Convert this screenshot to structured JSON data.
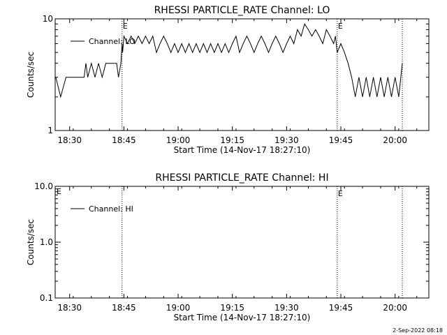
{
  "footer": {
    "timestamp": "2-Sep-2022 08:18"
  },
  "chart_data": [
    {
      "type": "line",
      "title": "RHESSI PARTICLE_RATE Channel: LO",
      "xlabel": "Start Time (14-Nov-17 18:27:10)",
      "ylabel": "Counts/sec",
      "y_scale": "log",
      "ylim": [
        1,
        10
      ],
      "y_ticks": [
        1,
        10
      ],
      "y_tick_labels": [
        "1",
        "10"
      ],
      "x_ticks": [
        "18:30",
        "18:45",
        "19:00",
        "19:15",
        "19:30",
        "19:45",
        "20:00"
      ],
      "xlim": [
        "18:26:00",
        "20:09:20"
      ],
      "legend": {
        "placement": "top-left",
        "entries": [
          "Channel: LO"
        ]
      },
      "markers": [
        {
          "time": "18:44:30",
          "label": "E",
          "style": "dotted"
        },
        {
          "time": "19:44:00",
          "label": "E",
          "style": "dotted"
        },
        {
          "time": "20:02:00",
          "label": "",
          "style": "dotted"
        }
      ],
      "series": [
        {
          "name": "Channel: LO",
          "x": [
            "18:26:10",
            "18:27:30",
            "18:29:00",
            "18:31:00",
            "18:34:00",
            "18:34:30",
            "18:35:00",
            "18:36:00",
            "18:37:00",
            "18:38:00",
            "18:39:00",
            "18:40:00",
            "18:41:00",
            "18:42:00",
            "18:43:00",
            "18:43:30",
            "18:44:10",
            "18:44:30",
            "18:44:40",
            "18:45:00",
            "18:46:00",
            "18:47:00",
            "18:48:00",
            "18:49:00",
            "18:50:00",
            "18:51:00",
            "18:52:00",
            "18:53:00",
            "18:54:00",
            "18:55:00",
            "18:56:00",
            "18:57:00",
            "18:58:00",
            "18:59:00",
            "19:00:00",
            "19:01:00",
            "19:02:00",
            "19:03:00",
            "19:04:00",
            "19:05:00",
            "19:06:00",
            "19:07:00",
            "19:08:00",
            "19:09:00",
            "19:10:00",
            "19:11:00",
            "19:12:00",
            "19:13:00",
            "19:14:00",
            "19:15:00",
            "19:16:00",
            "19:17:00",
            "19:18:00",
            "19:19:00",
            "19:20:00",
            "19:21:00",
            "19:22:00",
            "19:23:00",
            "19:24:00",
            "19:25:00",
            "19:26:00",
            "19:27:00",
            "19:28:00",
            "19:29:00",
            "19:30:00",
            "19:31:00",
            "19:32:00",
            "19:33:00",
            "19:34:00",
            "19:35:00",
            "19:36:00",
            "19:37:00",
            "19:38:00",
            "19:39:00",
            "19:40:00",
            "19:41:00",
            "19:42:00",
            "19:43:00",
            "19:43:30",
            "19:44:00",
            "19:45:00",
            "19:46:00",
            "19:47:00",
            "19:48:00",
            "19:49:00",
            "19:50:00",
            "19:51:00",
            "19:52:00",
            "19:53:00",
            "19:54:00",
            "19:55:00",
            "19:56:00",
            "19:57:00",
            "19:58:00",
            "19:59:00",
            "20:00:00",
            "20:01:00",
            "20:02:00"
          ],
          "values": [
            3,
            2,
            3,
            3,
            3,
            4,
            3,
            4,
            3,
            4,
            3,
            4,
            4,
            4,
            4,
            3,
            4,
            6,
            5,
            7,
            6,
            7,
            6,
            7,
            6,
            7,
            6,
            7,
            5,
            6,
            7,
            6,
            5,
            6,
            5,
            6,
            5,
            6,
            5,
            6,
            5,
            6,
            5,
            6,
            5,
            6,
            5,
            6,
            5,
            6,
            7,
            5,
            6,
            7,
            6,
            5,
            6,
            7,
            6,
            5,
            6,
            7,
            6,
            5,
            6,
            7,
            6,
            8,
            7,
            9,
            8,
            7,
            8,
            7,
            6,
            8,
            7,
            6,
            7,
            5,
            6,
            5,
            4,
            3,
            2,
            3,
            2,
            3,
            2,
            3,
            2,
            3,
            2,
            3,
            2,
            3,
            2,
            4
          ]
        }
      ]
    },
    {
      "type": "line",
      "title": "RHESSI PARTICLE_RATE Channel: HI",
      "xlabel": "Start Time (14-Nov-17 18:27:10)",
      "ylabel": "Counts/sec",
      "y_scale": "log",
      "ylim": [
        0.1,
        10
      ],
      "y_ticks": [
        0.1,
        1,
        10
      ],
      "y_tick_labels": [
        "0.1",
        "1.0",
        "10.0"
      ],
      "x_ticks": [
        "18:30",
        "18:45",
        "19:00",
        "19:15",
        "19:30",
        "19:45",
        "20:00"
      ],
      "xlim": [
        "18:26:00",
        "20:09:20"
      ],
      "legend": {
        "placement": "top-left",
        "entries": [
          "Channel: HI"
        ]
      },
      "markers": [
        {
          "time": "18:44:30",
          "label": "",
          "style": "dotted"
        },
        {
          "time": "19:44:00",
          "label": "E",
          "style": "dotted"
        },
        {
          "time": "20:02:00",
          "label": "",
          "style": "dotted"
        }
      ],
      "corner_label": "E",
      "series": [
        {
          "name": "Channel: HI",
          "x": [],
          "values": []
        }
      ]
    }
  ]
}
